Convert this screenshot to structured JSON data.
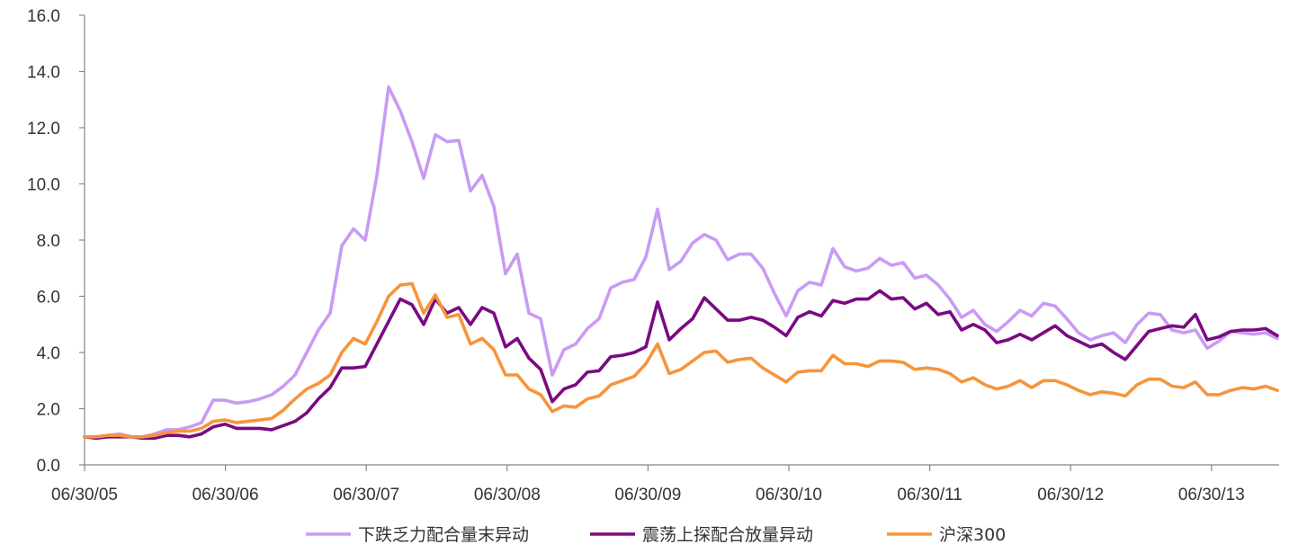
{
  "chart_data": {
    "type": "line",
    "title": "",
    "xlabel": "",
    "ylabel": "",
    "ylim": [
      0,
      16
    ],
    "yticks": [
      "0.0",
      "2.0",
      "4.0",
      "6.0",
      "8.0",
      "10.0",
      "12.0",
      "14.0",
      "16.0"
    ],
    "x_tick_labels": [
      "06/30/05",
      "06/30/06",
      "06/30/07",
      "06/30/08",
      "06/30/09",
      "06/30/10",
      "06/30/11",
      "06/30/12",
      "06/30/13"
    ],
    "x_start": "2005-06-30",
    "x_end": "2014-01-31",
    "period": "monthly",
    "grid": false,
    "legend_position": "bottom",
    "series": [
      {
        "name": "下跌乏力配合量末异动",
        "color": "#C89BF4",
        "values": [
          1.0,
          1.0,
          1.05,
          1.1,
          1.0,
          1.0,
          1.1,
          1.25,
          1.25,
          1.35,
          1.5,
          2.3,
          2.3,
          2.2,
          2.25,
          2.35,
          2.5,
          2.8,
          3.2,
          4.0,
          4.8,
          5.4,
          7.8,
          8.4,
          8.0,
          10.3,
          13.45,
          12.6,
          11.5,
          10.2,
          11.75,
          11.5,
          11.55,
          9.75,
          10.3,
          9.2,
          6.8,
          7.5,
          5.4,
          5.2,
          3.2,
          4.1,
          4.3,
          4.85,
          5.2,
          6.3,
          6.5,
          6.6,
          7.4,
          9.1,
          6.95,
          7.25,
          7.9,
          8.2,
          8.0,
          7.3,
          7.5,
          7.5,
          7.0,
          6.1,
          5.3,
          6.2,
          6.5,
          6.4,
          7.7,
          7.05,
          6.9,
          7.0,
          7.35,
          7.1,
          7.2,
          6.65,
          6.75,
          6.4,
          5.9,
          5.25,
          5.5,
          5.0,
          4.75,
          5.1,
          5.5,
          5.3,
          5.75,
          5.65,
          5.2,
          4.7,
          4.45,
          4.6,
          4.7,
          4.35,
          5.0,
          5.4,
          5.35,
          4.8,
          4.7,
          4.8,
          4.15,
          4.4,
          4.75,
          4.7,
          4.65,
          4.7,
          4.5
        ]
      },
      {
        "name": "震荡上探配合放量异动",
        "color": "#7A0A82",
        "values": [
          1.0,
          0.95,
          1.0,
          1.0,
          1.0,
          0.95,
          0.95,
          1.05,
          1.05,
          1.0,
          1.1,
          1.35,
          1.45,
          1.3,
          1.3,
          1.3,
          1.25,
          1.4,
          1.55,
          1.85,
          2.35,
          2.75,
          3.45,
          3.45,
          3.5,
          4.3,
          5.1,
          5.9,
          5.7,
          5.0,
          5.9,
          5.4,
          5.6,
          5.0,
          5.6,
          5.4,
          4.2,
          4.5,
          3.8,
          3.4,
          2.25,
          2.7,
          2.85,
          3.3,
          3.35,
          3.85,
          3.9,
          4.0,
          4.2,
          5.8,
          4.45,
          4.85,
          5.2,
          5.95,
          5.55,
          5.15,
          5.15,
          5.25,
          5.15,
          4.9,
          4.6,
          5.25,
          5.45,
          5.3,
          5.85,
          5.75,
          5.9,
          5.9,
          6.2,
          5.9,
          5.95,
          5.55,
          5.75,
          5.35,
          5.45,
          4.8,
          5.0,
          4.8,
          4.35,
          4.45,
          4.65,
          4.45,
          4.7,
          4.95,
          4.6,
          4.4,
          4.2,
          4.3,
          4.0,
          3.75,
          4.25,
          4.75,
          4.85,
          4.95,
          4.9,
          5.35,
          4.45,
          4.55,
          4.75,
          4.8,
          4.8,
          4.85,
          4.6
        ]
      },
      {
        "name": "沪深300",
        "color": "#F7943B",
        "values": [
          1.0,
          1.0,
          1.05,
          1.05,
          1.0,
          1.0,
          1.05,
          1.15,
          1.2,
          1.2,
          1.3,
          1.55,
          1.6,
          1.5,
          1.55,
          1.6,
          1.65,
          1.95,
          2.35,
          2.7,
          2.9,
          3.2,
          4.0,
          4.5,
          4.3,
          5.1,
          6.0,
          6.4,
          6.45,
          5.4,
          6.05,
          5.25,
          5.35,
          4.3,
          4.5,
          4.1,
          3.2,
          3.2,
          2.7,
          2.5,
          1.9,
          2.1,
          2.05,
          2.35,
          2.45,
          2.85,
          3.0,
          3.15,
          3.6,
          4.3,
          3.25,
          3.4,
          3.7,
          4.0,
          4.05,
          3.65,
          3.75,
          3.8,
          3.45,
          3.2,
          2.95,
          3.3,
          3.35,
          3.35,
          3.9,
          3.6,
          3.6,
          3.5,
          3.7,
          3.7,
          3.65,
          3.4,
          3.45,
          3.4,
          3.25,
          2.95,
          3.1,
          2.85,
          2.7,
          2.8,
          3.0,
          2.75,
          3.0,
          3.0,
          2.85,
          2.65,
          2.5,
          2.6,
          2.55,
          2.45,
          2.85,
          3.05,
          3.05,
          2.8,
          2.75,
          2.95,
          2.5,
          2.5,
          2.65,
          2.75,
          2.7,
          2.8,
          2.65
        ]
      }
    ]
  }
}
